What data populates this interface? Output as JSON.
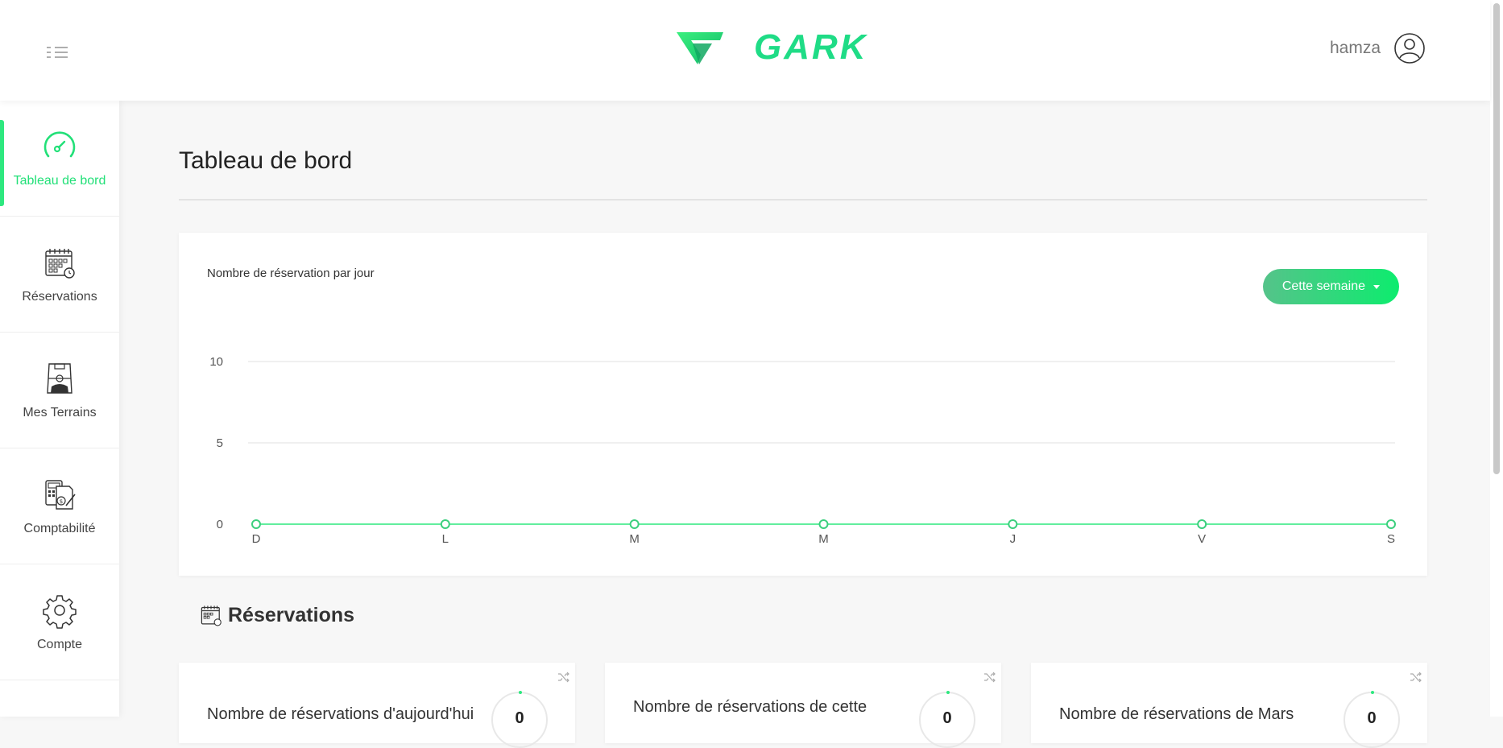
{
  "header": {
    "brand": "GARK",
    "user_name": "hamza",
    "colors": {
      "brand_green": "#1fdc86",
      "accent": "#2ee87f"
    }
  },
  "sidebar": {
    "items": [
      {
        "label": "Tableau de bord",
        "icon": "dashboard-gauge-icon",
        "active": true
      },
      {
        "label": "Réservations",
        "icon": "calendar-icon",
        "active": false
      },
      {
        "label": "Mes Terrains",
        "icon": "football-field-icon",
        "active": false
      },
      {
        "label": "Comptabilité",
        "icon": "accounting-icon",
        "active": false
      },
      {
        "label": "Compte",
        "icon": "gear-icon",
        "active": false
      }
    ]
  },
  "main": {
    "title": "Tableau de bord",
    "chart_card": {
      "title": "Nombre de réservation par jour",
      "period_button": "Cette semaine"
    },
    "reservations_section": {
      "title": "Réservations",
      "cards": [
        {
          "label": "Nombre de réservations d'aujourd'hui",
          "value": "0"
        },
        {
          "label": "Nombre de réservations de cette",
          "value": "0"
        },
        {
          "label": "Nombre de réservations de Mars",
          "value": "0"
        }
      ]
    }
  },
  "chart_data": {
    "type": "line",
    "title": "Nombre de réservation par jour",
    "categories": [
      "D",
      "L",
      "M",
      "M",
      "J",
      "V",
      "S"
    ],
    "series": [
      {
        "values": [
          0,
          0,
          0,
          0,
          0,
          0,
          0
        ],
        "color": "#2ee87f"
      }
    ],
    "y_ticks": [
      0,
      5,
      10
    ],
    "ylim": [
      0,
      10
    ],
    "grid": true
  }
}
